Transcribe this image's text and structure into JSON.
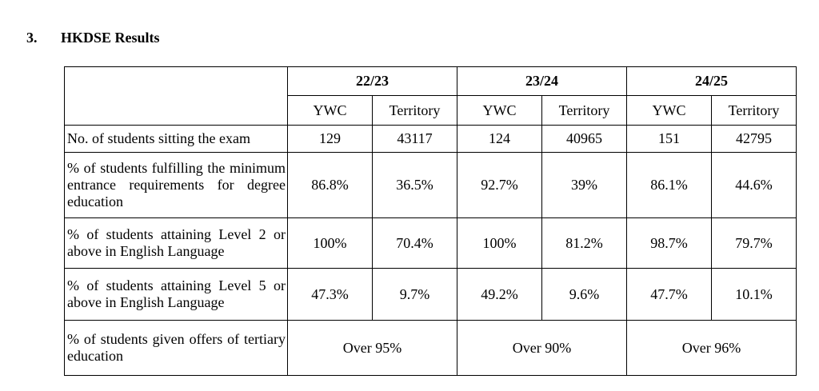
{
  "section": {
    "number": "3.",
    "title": "HKDSE Results"
  },
  "table": {
    "years": [
      "22/23",
      "23/24",
      "24/25"
    ],
    "subheaders": [
      "YWC",
      "Territory",
      "YWC",
      "Territory",
      "YWC",
      "Territory"
    ],
    "rows": [
      {
        "label": "No. of students sitting the exam",
        "values": [
          "129",
          "43117",
          "124",
          "40965",
          "151",
          "42795"
        ]
      },
      {
        "label": "% of students fulfilling the minimum entrance requirements for degree education",
        "values": [
          "86.8%",
          "36.5%",
          "92.7%",
          "39%",
          "86.1%",
          "44.6%"
        ]
      },
      {
        "label": "% of students attaining Level 2 or above in English Language",
        "values": [
          "100%",
          "70.4%",
          "100%",
          "81.2%",
          "98.7%",
          "79.7%"
        ]
      },
      {
        "label": "% of students attaining Level 5 or above in English Language",
        "values": [
          "47.3%",
          "9.7%",
          "49.2%",
          "9.6%",
          "47.7%",
          "10.1%"
        ]
      }
    ],
    "offers_row": {
      "label": "% of students given offers of tertiary education",
      "values": [
        "Over 95%",
        "Over 90%",
        "Over 96%"
      ]
    }
  }
}
